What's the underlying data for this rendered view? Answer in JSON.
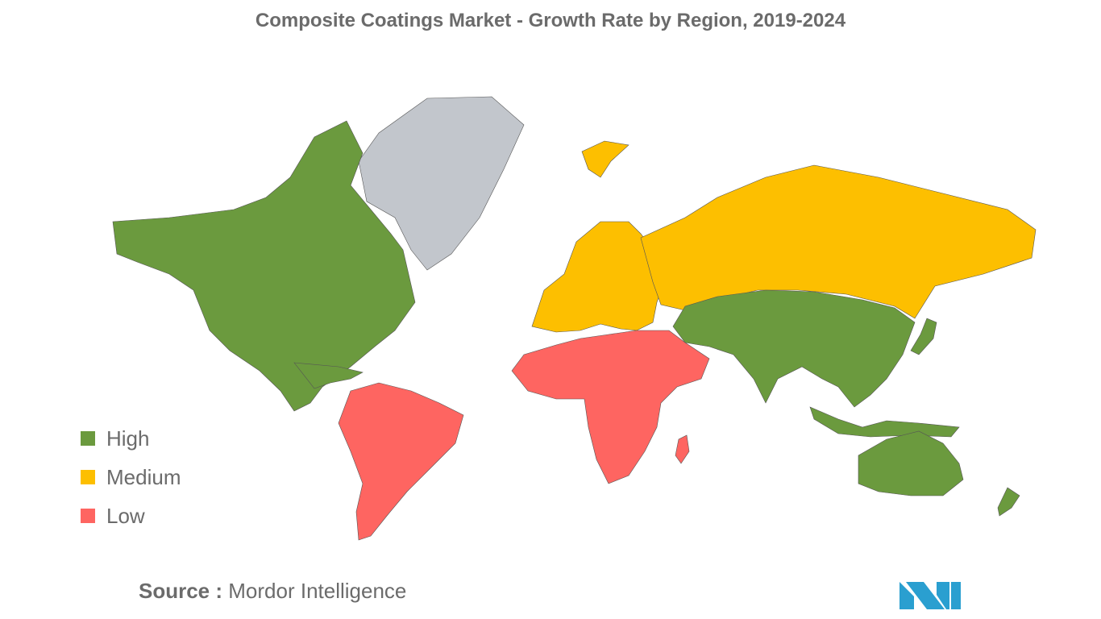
{
  "title": "Composite Coatings Market - Growth Rate by Region, 2019-2024",
  "colors": {
    "high": "#6b9a3e",
    "medium": "#fdbf00",
    "low": "#fe6561",
    "na": "#c2c6cc",
    "logo": "#2a9fd0"
  },
  "legend": [
    {
      "label": "High",
      "level": "high"
    },
    {
      "label": "Medium",
      "level": "medium"
    },
    {
      "label": "Low",
      "level": "low"
    }
  ],
  "regions": [
    {
      "name": "North America",
      "level": "high"
    },
    {
      "name": "Asia-Pacific",
      "level": "high"
    },
    {
      "name": "Europe",
      "level": "medium"
    },
    {
      "name": "Russia",
      "level": "medium"
    },
    {
      "name": "South America",
      "level": "low"
    },
    {
      "name": "Middle East and Africa",
      "level": "low"
    },
    {
      "name": "Greenland",
      "level": "none"
    }
  ],
  "source": {
    "label": "Source :",
    "value": "Mordor Intelligence"
  },
  "logo_icon": "mordor-intelligence-logo"
}
